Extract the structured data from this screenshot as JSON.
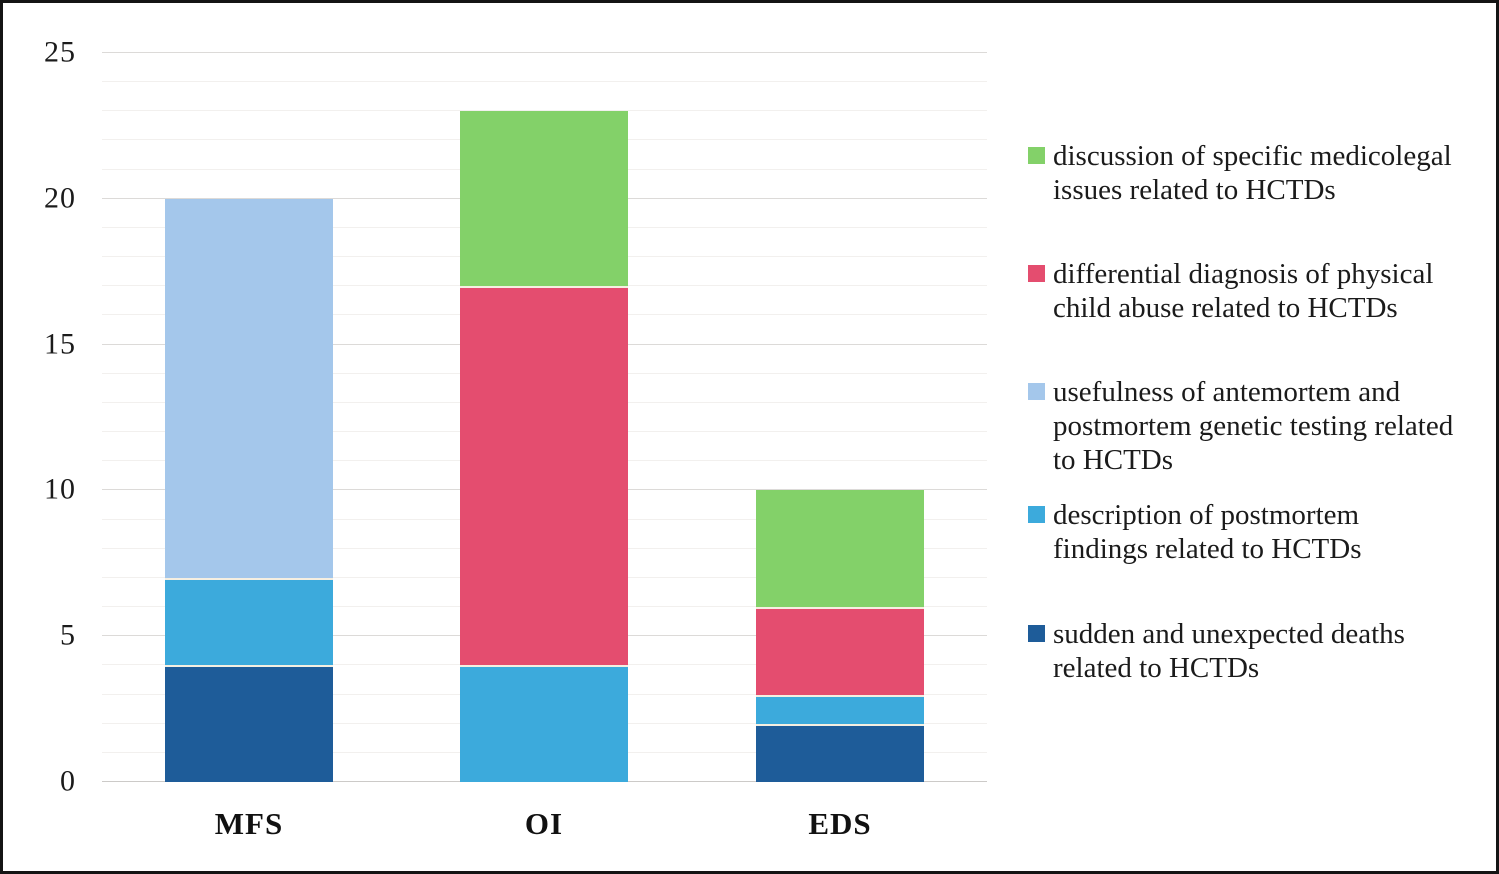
{
  "figure": {
    "x_axis_labels": [
      "MFS",
      "OI",
      "EDS"
    ],
    "y_axis_ticks": [
      0,
      5,
      10,
      15,
      20,
      25
    ]
  },
  "legend": {
    "entries": [
      {
        "label": "discussion of specific medicolegal issues related to HCTDs",
        "lines": [
          "discussion of specific medicolegal",
          "issues related to HCTDs"
        ],
        "color": "#83d169"
      },
      {
        "label": "differential diagnosis of physical child abuse related to HCTDs",
        "lines": [
          "differential diagnosis of physical",
          "child abuse related to HCTDs"
        ],
        "color": "#e44d6f"
      },
      {
        "label": "usefulness of antemortem and postmortem genetic testing related to HCTDs",
        "lines": [
          "usefulness of antemortem and",
          "postmortem genetic testing related",
          "to HCTDs"
        ],
        "color": "#a4c7eb"
      },
      {
        "label": "description of postmortem findings related to HCTDs",
        "lines": [
          "description of postmortem",
          "findings related to HCTDs"
        ],
        "color": "#3caadc"
      },
      {
        "label": "sudden and unexpected deaths related to HCTDs",
        "lines": [
          "sudden and unexpected deaths",
          "related to HCTDs"
        ],
        "color": "#1e5c99"
      }
    ]
  },
  "chart_data": {
    "type": "bar",
    "stacked": true,
    "title": "",
    "xlabel": "",
    "ylabel": "",
    "categories": [
      "MFS",
      "OI",
      "EDS"
    ],
    "series": [
      {
        "name": "sudden and unexpected deaths related to HCTDs",
        "color": "#1e5c99",
        "values": [
          4,
          0,
          2
        ]
      },
      {
        "name": "description of postmortem findings related to HCTDs",
        "color": "#3caadc",
        "values": [
          3,
          4,
          1
        ]
      },
      {
        "name": "usefulness of antemortem and postmortem genetic testing related to HCTDs",
        "color": "#a4c7eb",
        "values": [
          13,
          0,
          0
        ]
      },
      {
        "name": "differential diagnosis of physical child abuse related to HCTDs",
        "color": "#e44d6f",
        "values": [
          0,
          13,
          3
        ]
      },
      {
        "name": "discussion of specific medicolegal issues related to HCTDs",
        "color": "#83d169",
        "values": [
          0,
          6,
          4
        ]
      }
    ],
    "stack_totals": {
      "MFS": 20,
      "OI": 23,
      "EDS": 10
    },
    "ylim": [
      0,
      25
    ],
    "yticks": [
      0,
      5,
      10,
      15,
      20,
      25
    ],
    "grid": {
      "horizontal": true,
      "minor_step": 1,
      "major_step": 5
    },
    "legend_position": "right"
  }
}
